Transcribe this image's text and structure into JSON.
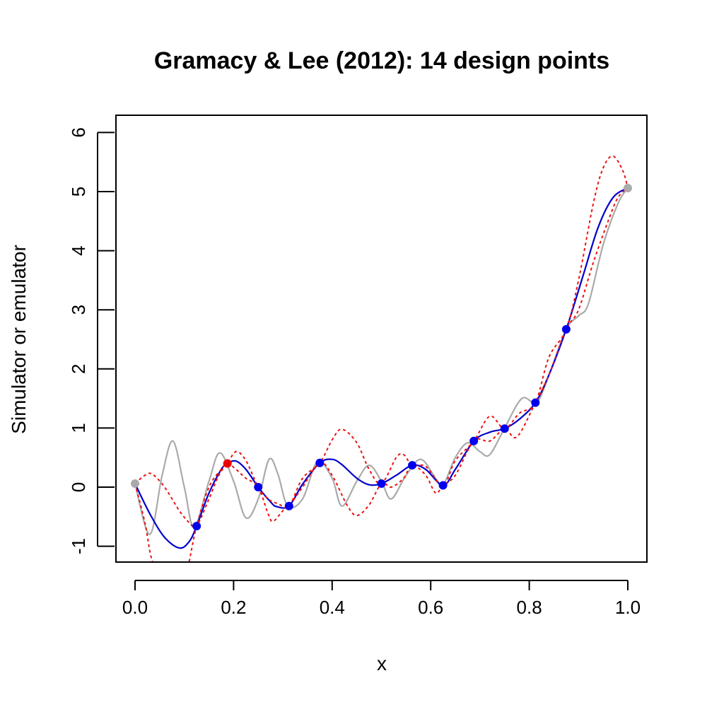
{
  "chart_data": {
    "type": "line",
    "title": "Gramacy & Lee (2012):  14 design points",
    "xlabel": "x",
    "ylabel": "Simulator or emulator",
    "xlim": [
      0,
      1
    ],
    "ylim": [
      -1.25,
      6.25
    ],
    "x_ticks": [
      0,
      0.2,
      0.4,
      0.6,
      0.8,
      1.0
    ],
    "x_tick_labels": [
      "0.0",
      "0.2",
      "0.4",
      "0.6",
      "0.8",
      "1.0"
    ],
    "y_ticks": [
      -1,
      0,
      1,
      2,
      3,
      4,
      5,
      6
    ],
    "y_tick_labels": [
      "-1",
      "0",
      "1",
      "2",
      "3",
      "4",
      "5",
      "6"
    ],
    "grid": false,
    "colors": {
      "simulator": "#aaaaaa",
      "emulator": "#0000cc",
      "bounds": "#ee1111",
      "design_points": "#0000ee",
      "new_point": "#ee0000",
      "endpoints": "#aaaaaa"
    },
    "series": [
      {
        "role": "simulator",
        "style": "solid",
        "points": [
          [
            0.0,
            0.06
          ],
          [
            0.03,
            -0.8
          ],
          [
            0.055,
            0.2
          ],
          [
            0.077,
            0.78
          ],
          [
            0.1,
            0.0
          ],
          [
            0.12,
            -0.68
          ],
          [
            0.15,
            0.1
          ],
          [
            0.172,
            0.58
          ],
          [
            0.2,
            0.1
          ],
          [
            0.225,
            -0.52
          ],
          [
            0.25,
            -0.2
          ],
          [
            0.272,
            0.47
          ],
          [
            0.29,
            0.22
          ],
          [
            0.31,
            -0.32
          ],
          [
            0.34,
            -0.2
          ],
          [
            0.37,
            0.43
          ],
          [
            0.4,
            0.15
          ],
          [
            0.42,
            -0.32
          ],
          [
            0.45,
            0.1
          ],
          [
            0.475,
            0.37
          ],
          [
            0.5,
            0.1
          ],
          [
            0.52,
            -0.2
          ],
          [
            0.55,
            0.2
          ],
          [
            0.58,
            0.47
          ],
          [
            0.61,
            0.15
          ],
          [
            0.625,
            0.03
          ],
          [
            0.65,
            0.5
          ],
          [
            0.675,
            0.75
          ],
          [
            0.7,
            0.6
          ],
          [
            0.72,
            0.55
          ],
          [
            0.75,
            1.0
          ],
          [
            0.785,
            1.5
          ],
          [
            0.815,
            1.43
          ],
          [
            0.84,
            1.9
          ],
          [
            0.875,
            2.67
          ],
          [
            0.9,
            2.9
          ],
          [
            0.92,
            3.1
          ],
          [
            0.95,
            4.1
          ],
          [
            0.98,
            4.8
          ],
          [
            1.0,
            5.06
          ]
        ]
      },
      {
        "role": "emulator",
        "style": "solid",
        "points": [
          [
            0.0,
            0.06
          ],
          [
            0.03,
            -0.45
          ],
          [
            0.06,
            -0.85
          ],
          [
            0.09,
            -1.03
          ],
          [
            0.11,
            -0.92
          ],
          [
            0.125,
            -0.66
          ],
          [
            0.15,
            -0.1
          ],
          [
            0.175,
            0.3
          ],
          [
            0.1875,
            0.4
          ],
          [
            0.205,
            0.44
          ],
          [
            0.225,
            0.3
          ],
          [
            0.25,
            0.0
          ],
          [
            0.275,
            -0.25
          ],
          [
            0.2875,
            -0.33
          ],
          [
            0.3125,
            -0.32
          ],
          [
            0.34,
            0.05
          ],
          [
            0.375,
            0.41
          ],
          [
            0.4,
            0.47
          ],
          [
            0.42,
            0.38
          ],
          [
            0.45,
            0.15
          ],
          [
            0.475,
            0.04
          ],
          [
            0.5,
            0.06
          ],
          [
            0.53,
            0.2
          ],
          [
            0.5625,
            0.37
          ],
          [
            0.59,
            0.3
          ],
          [
            0.625,
            0.03
          ],
          [
            0.65,
            0.3
          ],
          [
            0.6875,
            0.78
          ],
          [
            0.72,
            0.93
          ],
          [
            0.75,
            0.99
          ],
          [
            0.78,
            1.15
          ],
          [
            0.8125,
            1.43
          ],
          [
            0.84,
            1.9
          ],
          [
            0.875,
            2.67
          ],
          [
            0.91,
            3.6
          ],
          [
            0.94,
            4.4
          ],
          [
            0.97,
            4.9
          ],
          [
            1.0,
            5.06
          ]
        ]
      },
      {
        "role": "upper-bound",
        "style": "dashed",
        "points": [
          [
            0.0,
            0.06
          ],
          [
            0.02,
            0.2
          ],
          [
            0.035,
            0.22
          ],
          [
            0.06,
            0.0
          ],
          [
            0.09,
            -0.4
          ],
          [
            0.11,
            -0.6
          ],
          [
            0.125,
            -0.66
          ],
          [
            0.15,
            -0.2
          ],
          [
            0.17,
            0.2
          ],
          [
            0.1875,
            0.4
          ],
          [
            0.205,
            0.6
          ],
          [
            0.225,
            0.45
          ],
          [
            0.25,
            0.0
          ],
          [
            0.27,
            -0.2
          ],
          [
            0.29,
            -0.28
          ],
          [
            0.3125,
            -0.32
          ],
          [
            0.34,
            0.15
          ],
          [
            0.375,
            0.41
          ],
          [
            0.4,
            0.8
          ],
          [
            0.42,
            0.98
          ],
          [
            0.45,
            0.75
          ],
          [
            0.475,
            0.3
          ],
          [
            0.5,
            0.06
          ],
          [
            0.53,
            0.5
          ],
          [
            0.545,
            0.55
          ],
          [
            0.5625,
            0.37
          ],
          [
            0.59,
            0.35
          ],
          [
            0.625,
            0.03
          ],
          [
            0.65,
            0.45
          ],
          [
            0.6875,
            0.78
          ],
          [
            0.72,
            1.2
          ],
          [
            0.75,
            0.99
          ],
          [
            0.78,
            1.25
          ],
          [
            0.8125,
            1.43
          ],
          [
            0.84,
            2.2
          ],
          [
            0.875,
            2.67
          ],
          [
            0.9,
            3.5
          ],
          [
            0.93,
            4.8
          ],
          [
            0.95,
            5.4
          ],
          [
            0.97,
            5.6
          ],
          [
            0.99,
            5.35
          ],
          [
            1.0,
            5.06
          ]
        ]
      },
      {
        "role": "lower-bound",
        "style": "dashed",
        "points": [
          [
            0.0,
            0.06
          ],
          [
            0.02,
            -0.6
          ],
          [
            0.035,
            -1.25
          ],
          [
            0.06,
            -1.6
          ],
          [
            0.09,
            -1.75
          ],
          [
            0.1,
            -1.6
          ],
          [
            0.11,
            -1.25
          ],
          [
            0.125,
            -0.66
          ],
          [
            0.15,
            0.0
          ],
          [
            0.175,
            0.3
          ],
          [
            0.1875,
            0.4
          ],
          [
            0.205,
            0.3
          ],
          [
            0.225,
            0.15
          ],
          [
            0.25,
            0.0
          ],
          [
            0.27,
            -0.45
          ],
          [
            0.28,
            -0.58
          ],
          [
            0.3,
            -0.4
          ],
          [
            0.3125,
            -0.32
          ],
          [
            0.34,
            0.0
          ],
          [
            0.375,
            0.41
          ],
          [
            0.4,
            0.2
          ],
          [
            0.43,
            -0.3
          ],
          [
            0.45,
            -0.48
          ],
          [
            0.475,
            -0.3
          ],
          [
            0.5,
            0.06
          ],
          [
            0.52,
            0.0
          ],
          [
            0.545,
            0.15
          ],
          [
            0.5625,
            0.37
          ],
          [
            0.59,
            0.2
          ],
          [
            0.61,
            -0.1
          ],
          [
            0.625,
            0.03
          ],
          [
            0.65,
            0.2
          ],
          [
            0.6875,
            0.78
          ],
          [
            0.72,
            0.78
          ],
          [
            0.75,
            0.99
          ],
          [
            0.775,
            0.85
          ],
          [
            0.8125,
            1.43
          ],
          [
            0.84,
            1.9
          ],
          [
            0.875,
            2.67
          ],
          [
            0.9,
            3.0
          ],
          [
            0.93,
            3.8
          ],
          [
            0.96,
            4.5
          ],
          [
            0.98,
            4.9
          ],
          [
            1.0,
            5.06
          ]
        ]
      }
    ],
    "design_points": [
      {
        "x": 0.0,
        "y": 0.06,
        "kind": "endpoint"
      },
      {
        "x": 0.125,
        "y": -0.66,
        "kind": "design"
      },
      {
        "x": 0.1875,
        "y": 0.4,
        "kind": "new"
      },
      {
        "x": 0.25,
        "y": 0.0,
        "kind": "design"
      },
      {
        "x": 0.3125,
        "y": -0.32,
        "kind": "design"
      },
      {
        "x": 0.375,
        "y": 0.41,
        "kind": "design"
      },
      {
        "x": 0.5,
        "y": 0.06,
        "kind": "design"
      },
      {
        "x": 0.5625,
        "y": 0.37,
        "kind": "design"
      },
      {
        "x": 0.625,
        "y": 0.03,
        "kind": "design"
      },
      {
        "x": 0.6875,
        "y": 0.78,
        "kind": "design"
      },
      {
        "x": 0.75,
        "y": 0.99,
        "kind": "design"
      },
      {
        "x": 0.8125,
        "y": 1.43,
        "kind": "design"
      },
      {
        "x": 0.875,
        "y": 2.67,
        "kind": "design"
      },
      {
        "x": 1.0,
        "y": 5.06,
        "kind": "endpoint"
      }
    ]
  }
}
